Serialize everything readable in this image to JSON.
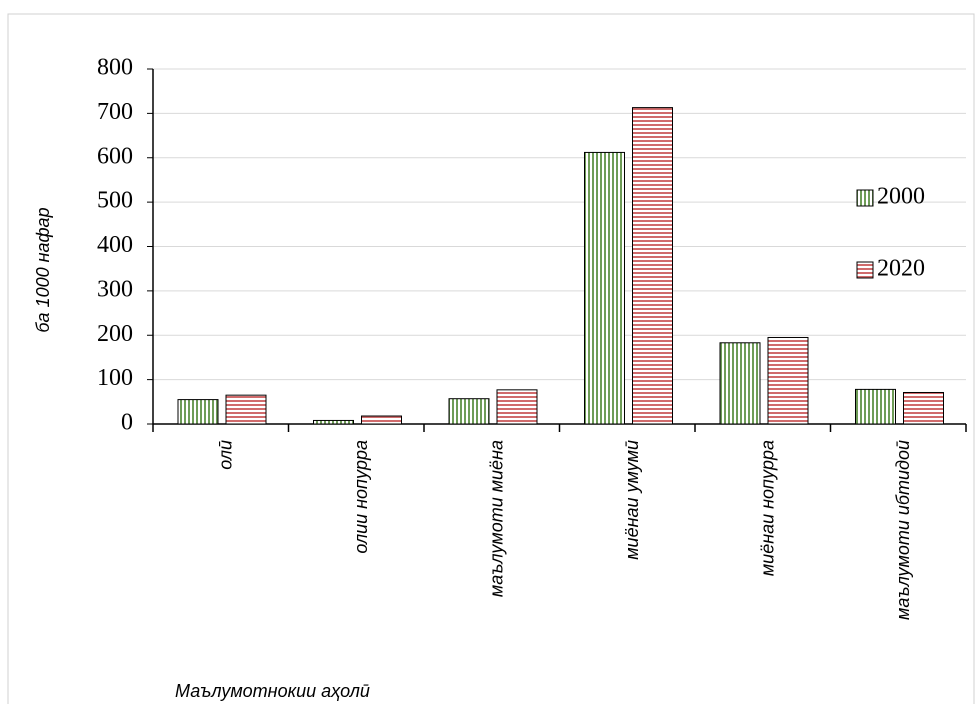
{
  "chart_data": {
    "type": "bar",
    "y_label": "ба 1000 нафар",
    "x_label": "Маълумотнокии аҳолӣ",
    "categories": [
      "олӣ",
      "олии нопурра",
      "маълумоти миёна",
      "миёнаи умумӣ",
      "миёнаи нопурра",
      "маълумоти ибтидоӣ"
    ],
    "series": [
      {
        "name": "2000",
        "color": "#3d7a1e",
        "pattern": "vertical",
        "values": [
          55,
          8,
          57,
          612,
          183,
          78
        ]
      },
      {
        "name": "2020",
        "color": "#c0393b",
        "pattern": "horizontal",
        "values": [
          65,
          18,
          77,
          713,
          195,
          71
        ]
      }
    ],
    "ylim": [
      0,
      800
    ],
    "yticks": [
      0,
      100,
      200,
      300,
      400,
      500,
      600,
      700,
      800
    ],
    "grid": true,
    "legend": "right"
  }
}
